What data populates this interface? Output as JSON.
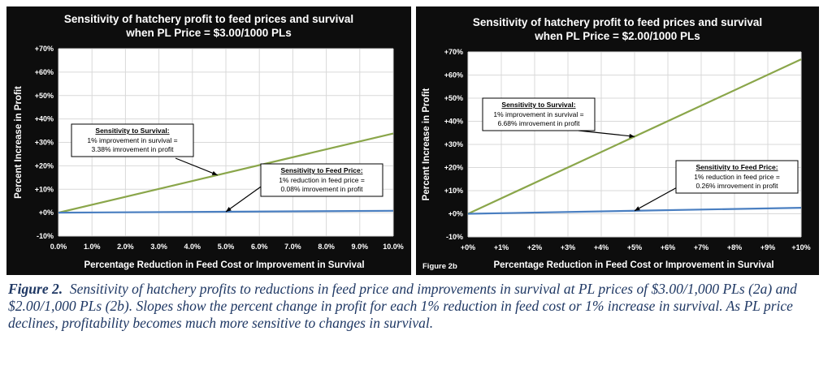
{
  "colors": {
    "survival": "#8aa64a",
    "feed": "#4a7fc1",
    "plot_bg": "#ffffff",
    "frame_bg": "#0d0d0d",
    "caption": "#1f3864"
  },
  "chart_data": [
    {
      "type": "line",
      "title": [
        "Sensitivity of hatchery profit to feed prices and survival",
        "when PL Price = $3.00/1000 PLs"
      ],
      "xlabel": "Percentage Reduction in Feed Cost or Improvement in Survival",
      "ylabel": "Percent Increase in Profit",
      "xlim": [
        0,
        10
      ],
      "ylim": [
        -10,
        70
      ],
      "xticks": [
        0,
        1,
        2,
        3,
        4,
        5,
        6,
        7,
        8,
        9,
        10
      ],
      "xtick_labels": [
        "0.0%",
        "1.0%",
        "2.0%",
        "3.0%",
        "4.0%",
        "5.0%",
        "6.0%",
        "7.0%",
        "8.0%",
        "9.0%",
        "10.0%"
      ],
      "yticks": [
        -10,
        0,
        10,
        20,
        30,
        40,
        50,
        60,
        70
      ],
      "ytick_labels": [
        "-10%",
        "+0%",
        "+10%",
        "+20%",
        "+30%",
        "+40%",
        "+50%",
        "+60%",
        "+70%"
      ],
      "grid": true,
      "figure_tag": "",
      "series": [
        {
          "name": "Survival",
          "x": [
            0,
            10
          ],
          "y": [
            0,
            33.8
          ]
        },
        {
          "name": "Feed Price",
          "x": [
            0,
            10
          ],
          "y": [
            0,
            0.8
          ]
        }
      ],
      "annotations": [
        {
          "target": "Survival",
          "title": "Sensitivity to Survival:",
          "lines": [
            "1% improvement in survival =",
            "3.38% imrovement in profit"
          ]
        },
        {
          "target": "Feed Price",
          "title": "Sensitivity to Feed Price:",
          "lines": [
            "1% reduction in feed price =",
            "0.08% imrovement in profit"
          ]
        }
      ]
    },
    {
      "type": "line",
      "title": [
        "Sensitivity of hatchery profit to feed prices and survival",
        "when PL Price = $2.00/1000 PLs"
      ],
      "xlabel": "Percentage Reduction in Feed Cost or Improvement in Survival",
      "ylabel": "Percent Increase in Profit",
      "xlim": [
        0,
        10
      ],
      "ylim": [
        -10,
        70
      ],
      "xticks": [
        0,
        1,
        2,
        3,
        4,
        5,
        6,
        7,
        8,
        9,
        10
      ],
      "xtick_labels": [
        "+0%",
        "+1%",
        "+2%",
        "+3%",
        "+4%",
        "+5%",
        "+6%",
        "+7%",
        "+8%",
        "+9%",
        "+10%"
      ],
      "yticks": [
        -10,
        0,
        10,
        20,
        30,
        40,
        50,
        60,
        70
      ],
      "ytick_labels": [
        "-10%",
        "+0%",
        "+10%",
        "+20%",
        "+30%",
        "+40%",
        "+50%",
        "+60%",
        "+70%"
      ],
      "grid": true,
      "figure_tag": "Figure 2b",
      "series": [
        {
          "name": "Survival",
          "x": [
            0,
            10
          ],
          "y": [
            0,
            66.8
          ]
        },
        {
          "name": "Feed Price",
          "x": [
            0,
            10
          ],
          "y": [
            0,
            2.6
          ]
        }
      ],
      "annotations": [
        {
          "target": "Survival",
          "title": "Sensitivity to Survival:",
          "lines": [
            "1% improvement in survival =",
            "6.68% imrovement in profit"
          ]
        },
        {
          "target": "Feed Price",
          "title": "Sensitivity to Feed Price:",
          "lines": [
            "1% reduction in feed price =",
            "0.26% imrovement in profit"
          ]
        }
      ]
    }
  ],
  "caption": {
    "label": "Figure 2.",
    "text": "Sensitivity of hatchery profits to reductions in feed price and improvements in survival at PL prices of $3.00/1,000 PLs (2a) and $2.00/1,000 PLs (2b). Slopes show the percent change in profit for each 1% reduction in feed cost or 1% increase in survival. As PL price declines, profitability becomes much more sensitive to changes in survival."
  }
}
